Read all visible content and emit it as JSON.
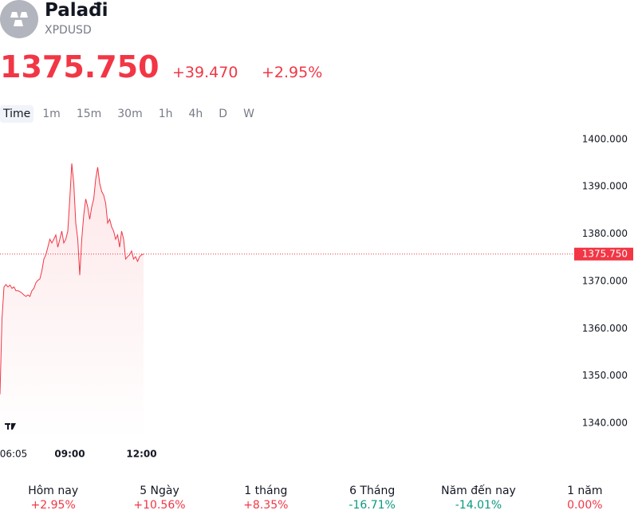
{
  "header": {
    "title": "Palađi",
    "symbol": "XPDUSD",
    "price": "1375.750",
    "change": "+39.470",
    "change_percent": "+2.95%"
  },
  "intervals": [
    "Time",
    "1m",
    "15m",
    "30m",
    "1h",
    "4h",
    "D",
    "W"
  ],
  "chart_data": {
    "type": "line",
    "color": "#f23645",
    "x": [
      "06:05",
      "06:10",
      "06:15",
      "06:20",
      "06:25",
      "06:30",
      "06:35",
      "06:40",
      "06:45",
      "06:50",
      "06:55",
      "07:00",
      "07:05",
      "07:10",
      "07:15",
      "07:20",
      "07:25",
      "07:30",
      "07:35",
      "07:40",
      "07:45",
      "07:50",
      "07:55",
      "08:00",
      "08:05",
      "08:10",
      "08:15",
      "08:20",
      "08:25",
      "08:30",
      "08:35",
      "08:40",
      "08:45",
      "08:50",
      "08:55",
      "09:00",
      "09:05",
      "09:10",
      "09:15",
      "09:20",
      "09:25",
      "09:30",
      "09:35",
      "09:40",
      "09:45",
      "09:50",
      "09:55",
      "10:00",
      "10:05",
      "10:10",
      "10:15",
      "10:20",
      "10:25",
      "10:30",
      "10:35",
      "10:40",
      "10:45",
      "10:50",
      "10:55",
      "11:00",
      "11:05",
      "11:10",
      "11:15",
      "11:20",
      "11:25",
      "11:30",
      "11:35",
      "11:40",
      "11:45",
      "11:50",
      "11:55",
      "12:00",
      "12:05"
    ],
    "values": [
      1346.1,
      1362.1,
      1368.8,
      1369.3,
      1368.8,
      1369.2,
      1368.5,
      1368.8,
      1368.0,
      1368.0,
      1367.8,
      1367.5,
      1367.1,
      1366.8,
      1367.1,
      1366.8,
      1368.0,
      1368.5,
      1369.7,
      1370.2,
      1370.5,
      1372.2,
      1374.7,
      1375.6,
      1377.2,
      1378.9,
      1378.1,
      1378.9,
      1379.8,
      1377.2,
      1378.9,
      1380.6,
      1378.1,
      1378.9,
      1380.6,
      1387.4,
      1394.9,
      1390.7,
      1382.3,
      1378.9,
      1371.3,
      1378.9,
      1384.0,
      1387.4,
      1385.7,
      1383.1,
      1385.7,
      1387.4,
      1391.6,
      1394.1,
      1390.7,
      1389.0,
      1388.2,
      1386.5,
      1382.3,
      1383.1,
      1381.5,
      1380.6,
      1378.9,
      1379.8,
      1377.2,
      1380.6,
      1378.9,
      1374.7,
      1375.2,
      1375.6,
      1376.4,
      1374.7,
      1375.2,
      1374.2,
      1375.2,
      1375.6,
      1375.75
    ],
    "xlim": [
      "06:05",
      "12:05"
    ],
    "xticks": [
      "06:05",
      "09:00",
      "12:00"
    ],
    "ylim": [
      1336.8,
      1402.5
    ],
    "yticks": [
      {
        "value": 1340,
        "label": "1340.000"
      },
      {
        "value": 1350,
        "label": "1350.000"
      },
      {
        "value": 1360,
        "label": "1360.000"
      },
      {
        "value": 1370,
        "label": "1370.000"
      },
      {
        "value": 1380,
        "label": "1380.000"
      },
      {
        "value": 1390,
        "label": "1390.000"
      },
      {
        "value": 1400,
        "label": "1400.000"
      }
    ],
    "price_line": {
      "value": 1375.75,
      "label": "1375.750"
    }
  },
  "performance": [
    {
      "label": "Hôm nay",
      "value": "+2.95%",
      "color": "#f23645"
    },
    {
      "label": "5 Ngày",
      "value": "+10.56%",
      "color": "#f23645"
    },
    {
      "label": "1 tháng",
      "value": "+8.35%",
      "color": "#f23645"
    },
    {
      "label": "6 Tháng",
      "value": "-16.71%",
      "color": "#089981"
    },
    {
      "label": "Năm đến nay",
      "value": "-14.01%",
      "color": "#089981"
    },
    {
      "label": "1 năm",
      "value": "0.00%",
      "color": "#f23645"
    }
  ]
}
